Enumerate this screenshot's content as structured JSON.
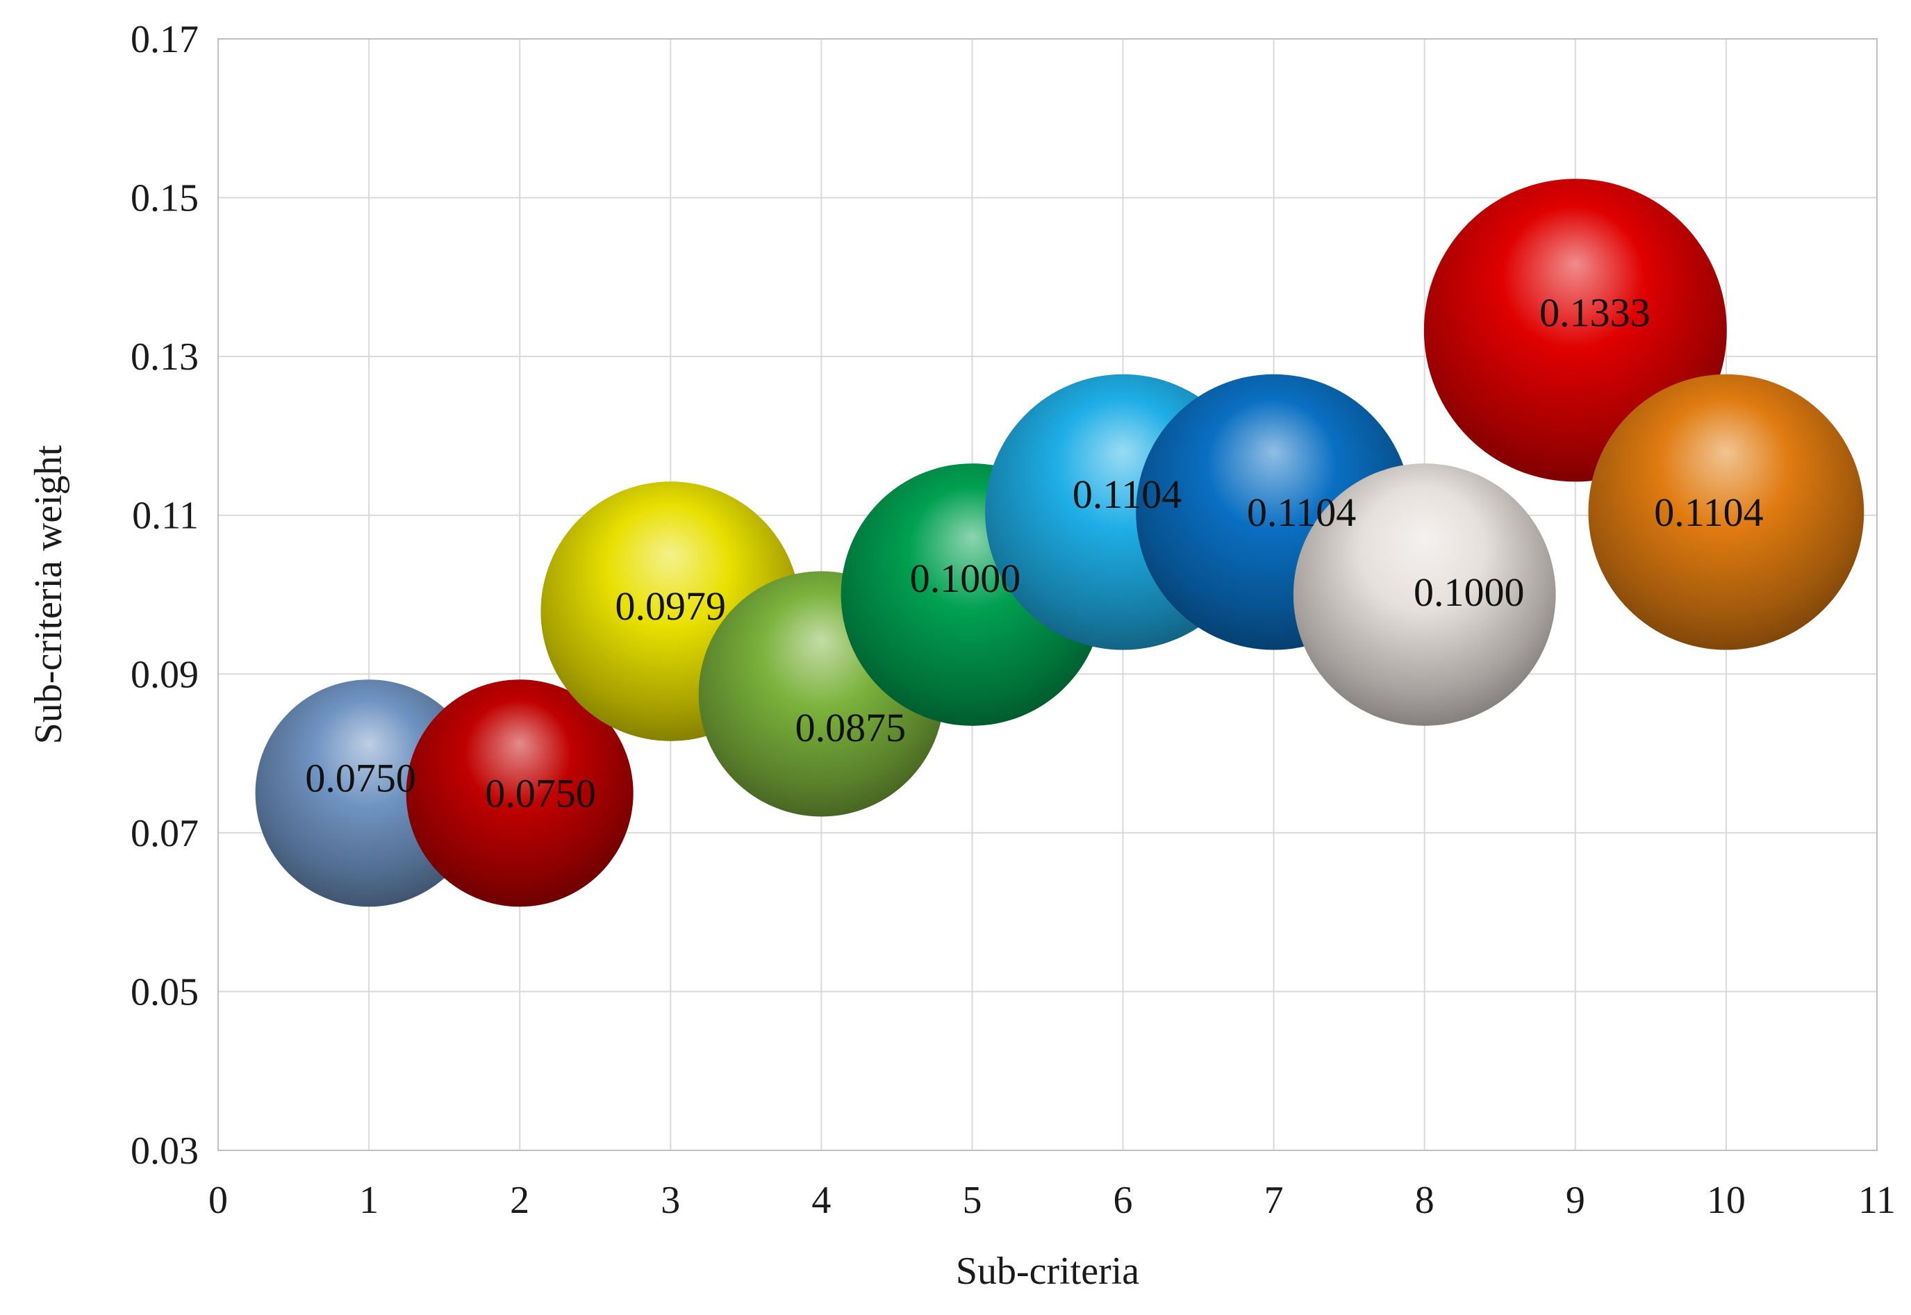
{
  "chart_data": {
    "type": "bubble",
    "title": "",
    "xlabel": "Sub-criteria",
    "ylabel": "Sub-criteria  weight",
    "xlim": [
      0,
      11
    ],
    "ylim": [
      0.03,
      0.17
    ],
    "x_ticks": [
      "0",
      "1",
      "2",
      "3",
      "4",
      "5",
      "6",
      "7",
      "8",
      "9",
      "10",
      "11"
    ],
    "y_ticks": [
      "0.03",
      "0.05",
      "0.07",
      "0.09",
      "0.11",
      "0.13",
      "0.15",
      "0.17"
    ],
    "grid": true,
    "legend": "none",
    "points": [
      {
        "x": 1,
        "y": 0.075,
        "size": 0.075,
        "label": "0.0750",
        "color": "#6f93c2"
      },
      {
        "x": 2,
        "y": 0.075,
        "size": 0.075,
        "label": "0.0750",
        "color": "#c00000"
      },
      {
        "x": 3,
        "y": 0.0979,
        "size": 0.0979,
        "label": "0.0979",
        "color": "#e8e000"
      },
      {
        "x": 4,
        "y": 0.0875,
        "size": 0.0875,
        "label": "0.0875",
        "color": "#7bb23c"
      },
      {
        "x": 5,
        "y": 0.1,
        "size": 0.1,
        "label": "0.1000",
        "color": "#00a050"
      },
      {
        "x": 6,
        "y": 0.1104,
        "size": 0.1104,
        "label": "0.1104",
        "color": "#1eaee6"
      },
      {
        "x": 7,
        "y": 0.1104,
        "size": 0.1104,
        "label": "0.1104",
        "color": "#0a6fc2"
      },
      {
        "x": 8,
        "y": 0.1,
        "size": 0.1,
        "label": "0.1000",
        "color": "#e6e0dc"
      },
      {
        "x": 9,
        "y": 0.1333,
        "size": 0.1333,
        "label": "0.1333",
        "color": "#e00000"
      },
      {
        "x": 10,
        "y": 0.1104,
        "size": 0.1104,
        "label": "0.1104",
        "color": "#e07b10"
      }
    ]
  }
}
